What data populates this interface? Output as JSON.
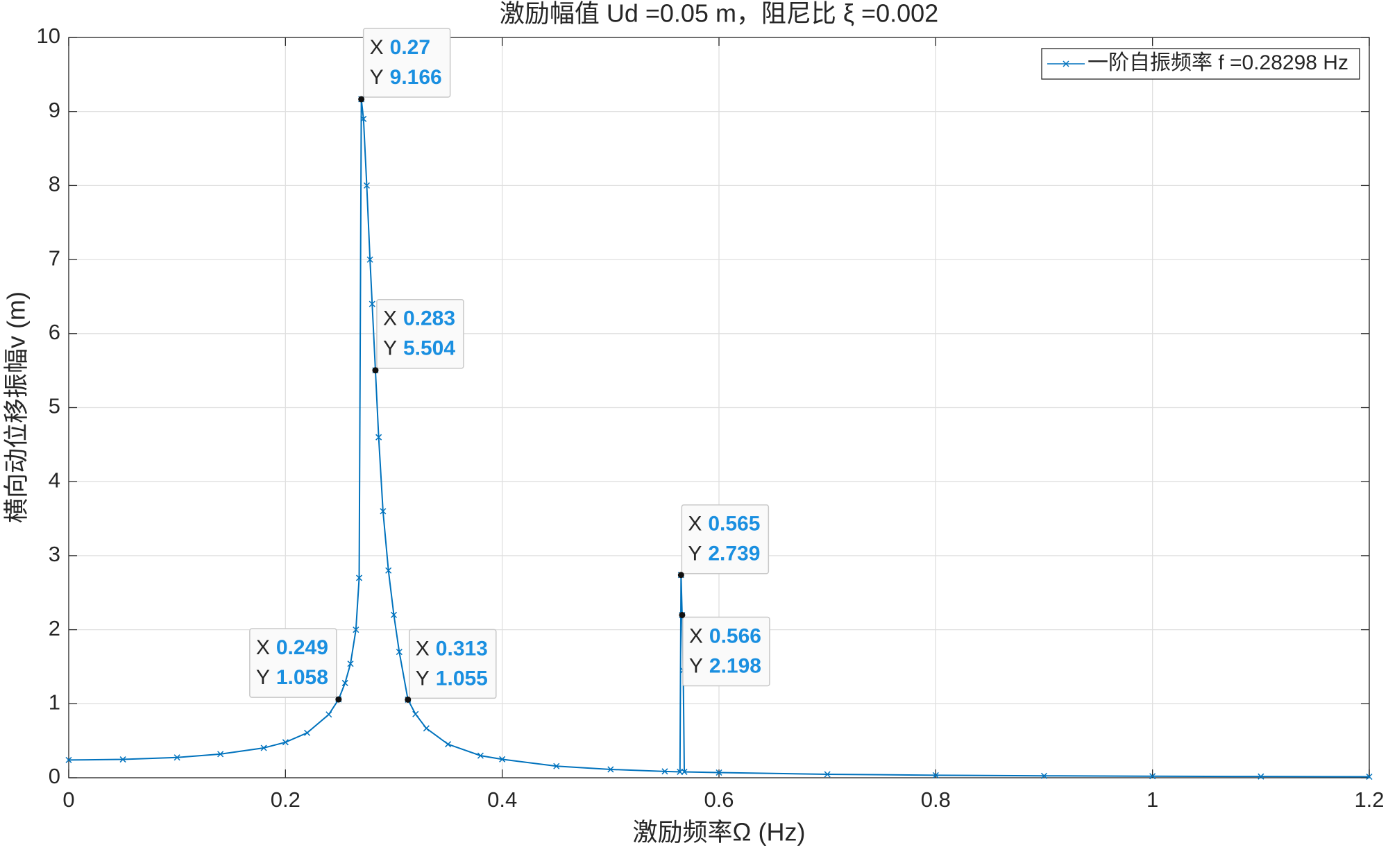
{
  "chart_data": {
    "type": "line",
    "title": "激励幅值 Ud =0.05 m，阻尼比 ξ =0.002",
    "x_label": "激励频率Ω (Hz)",
    "y_label": "横向动位移振幅v (m)",
    "xlim": [
      0,
      1.2
    ],
    "ylim": [
      0,
      10
    ],
    "xticks": [
      0,
      0.2,
      0.4,
      0.6,
      0.8,
      1,
      1.2
    ],
    "yticks": [
      0,
      1,
      2,
      3,
      4,
      5,
      6,
      7,
      8,
      9,
      10
    ],
    "grid": true,
    "legend_position": "upper right",
    "x": [
      0,
      0.05,
      0.1,
      0.14,
      0.18,
      0.2,
      0.22,
      0.24,
      0.249,
      0.255,
      0.26,
      0.265,
      0.268,
      0.27,
      0.272,
      0.275,
      0.278,
      0.28,
      0.283,
      0.286,
      0.29,
      0.295,
      0.3,
      0.305,
      0.313,
      0.32,
      0.33,
      0.35,
      0.38,
      0.4,
      0.45,
      0.5,
      0.55,
      0.564,
      0.565,
      0.566,
      0.567,
      0.568,
      0.6,
      0.7,
      0.8,
      0.9,
      1.0,
      1.1,
      1.2
    ],
    "series": [
      {
        "name": "一阶自振频率 f =0.28298 Hz",
        "color": "#0072bd",
        "marker": "x",
        "values": [
          0.24,
          0.248,
          0.274,
          0.32,
          0.403,
          0.48,
          0.607,
          0.855,
          1.058,
          1.28,
          1.54,
          2.0,
          2.7,
          9.166,
          8.9,
          8.0,
          7.0,
          6.4,
          5.504,
          4.6,
          3.6,
          2.8,
          2.2,
          1.7,
          1.055,
          0.86,
          0.667,
          0.453,
          0.299,
          0.25,
          0.157,
          0.113,
          0.086,
          0.08,
          2.739,
          2.198,
          1.45,
          0.08,
          0.07,
          0.047,
          0.034,
          0.026,
          0.021,
          0.017,
          0.014
        ]
      }
    ],
    "datatip_x_label": "X",
    "datatip_y_label": "Y",
    "datatips": [
      {
        "x": 0.27,
        "y": 9.166
      },
      {
        "x": 0.283,
        "y": 5.504
      },
      {
        "x": 0.249,
        "y": 1.058
      },
      {
        "x": 0.313,
        "y": 1.055
      },
      {
        "x": 0.565,
        "y": 2.739
      },
      {
        "x": 0.566,
        "y": 2.198
      }
    ]
  }
}
